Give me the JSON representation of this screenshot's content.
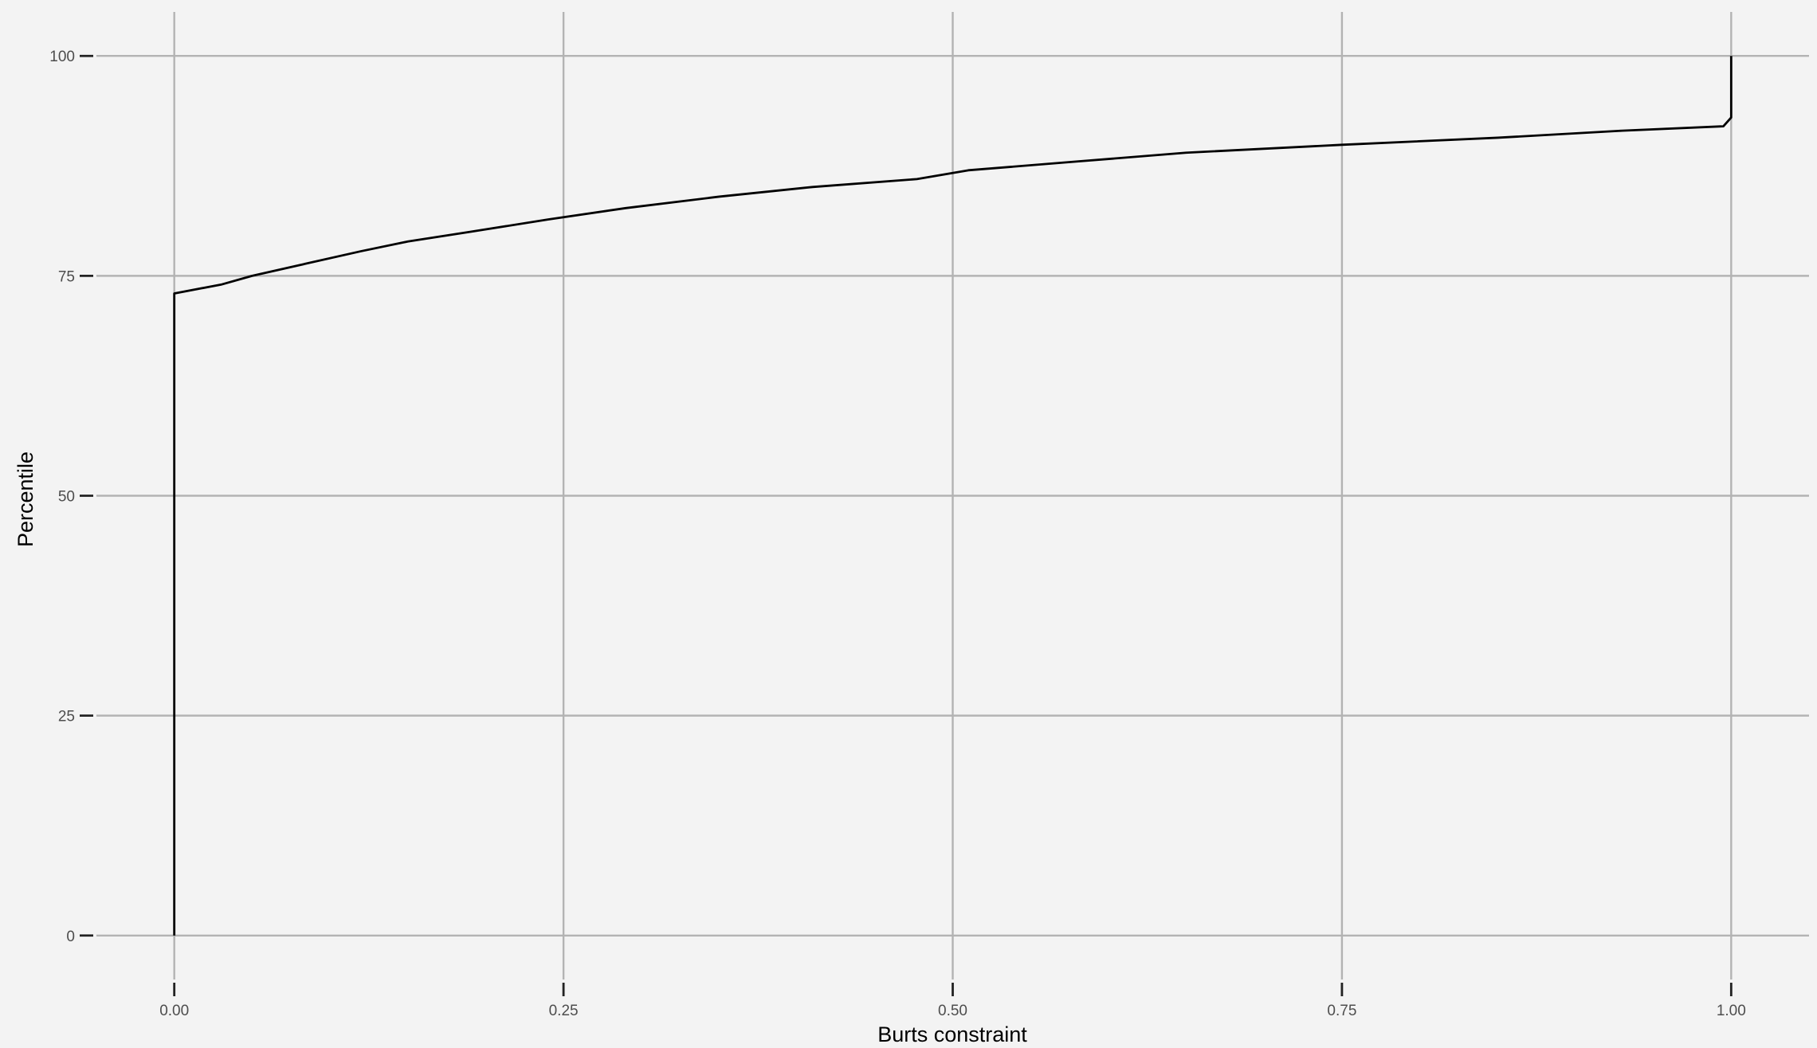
{
  "chart_data": {
    "type": "line",
    "title": "",
    "xlabel": "Burts constraint",
    "ylabel": "Percentile",
    "xlim": [
      -0.05,
      1.05
    ],
    "ylim": [
      -5,
      105
    ],
    "x_ticks": [
      0,
      0.25,
      0.5,
      0.75,
      1
    ],
    "x_tick_labels": [
      "0.00",
      "0.25",
      "0.50",
      "0.75",
      "1.00"
    ],
    "y_ticks": [
      0,
      25,
      50,
      75,
      100
    ],
    "y_tick_labels": [
      "0",
      "25",
      "50",
      "75",
      "100"
    ],
    "grid": true,
    "legend": "none",
    "colors": {
      "background": "#f3f3f3",
      "grid": "#b3b3b3",
      "line": "#000000",
      "tick_label": "#4d4d4d"
    },
    "series": [
      {
        "points": [
          [
            0,
            0
          ],
          [
            0,
            73
          ],
          [
            0.03,
            74
          ],
          [
            0.05,
            75
          ],
          [
            0.08,
            76.2
          ],
          [
            0.12,
            77.8
          ],
          [
            0.15,
            78.9
          ],
          [
            0.19,
            80
          ],
          [
            0.24,
            81.4
          ],
          [
            0.29,
            82.7
          ],
          [
            0.35,
            84
          ],
          [
            0.41,
            85.1
          ],
          [
            0.477,
            86
          ],
          [
            0.51,
            87
          ],
          [
            0.58,
            88
          ],
          [
            0.65,
            89
          ],
          [
            0.75,
            89.9
          ],
          [
            0.85,
            90.7
          ],
          [
            0.93,
            91.5
          ],
          [
            0.995,
            92
          ],
          [
            1.0,
            93
          ],
          [
            1.0,
            100
          ]
        ]
      }
    ]
  }
}
